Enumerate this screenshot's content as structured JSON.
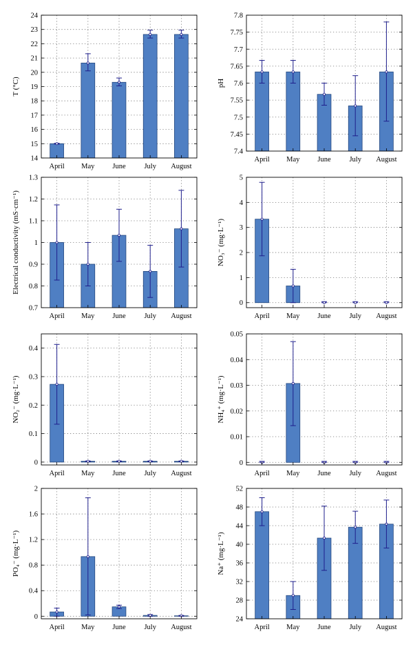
{
  "style": {
    "bar_color": "#4f7fc3",
    "bar_edge": "#24477e",
    "error_color": "#1e1e8c",
    "grid_color": "#6e6e6e"
  },
  "chart_data": [
    {
      "type": "bar",
      "ylabel": "T (°C)",
      "categories": [
        "April",
        "May",
        "June",
        "July",
        "August"
      ],
      "values": [
        15.0,
        20.65,
        19.3,
        22.65,
        22.65
      ],
      "error_low": [
        14.97,
        20.1,
        19.05,
        22.4,
        22.4
      ],
      "error_high": [
        15.03,
        21.3,
        19.6,
        22.95,
        22.95
      ],
      "ylim": [
        14,
        24
      ],
      "yticks": [
        14,
        15,
        16,
        17,
        18,
        19,
        20,
        21,
        22,
        23,
        24
      ],
      "ytick_labels": [
        "14",
        "15",
        "16",
        "17",
        "18",
        "19",
        "20",
        "21",
        "22",
        "23",
        "24"
      ],
      "grid": true
    },
    {
      "type": "bar",
      "ylabel": "pH",
      "categories": [
        "April",
        "May",
        "June",
        "July",
        "August"
      ],
      "values": [
        7.633,
        7.633,
        7.567,
        7.533,
        7.633
      ],
      "error_low": [
        7.6,
        7.6,
        7.535,
        7.445,
        7.488
      ],
      "error_high": [
        7.667,
        7.667,
        7.6,
        7.622,
        7.78
      ],
      "ylim": [
        7.4,
        7.8
      ],
      "yticks": [
        7.4,
        7.45,
        7.5,
        7.55,
        7.6,
        7.65,
        7.7,
        7.75,
        7.8
      ],
      "ytick_labels": [
        "7.4",
        "7.45",
        "7.5",
        "7.55",
        "7.6",
        "7.65",
        "7.7",
        "7.75",
        "7.8"
      ],
      "grid": true
    },
    {
      "type": "bar",
      "ylabel": "Electrical conductivity (mS·cm⁻¹)",
      "categories": [
        "April",
        "May",
        "June",
        "July",
        "August"
      ],
      "values": [
        1.0,
        0.9,
        1.033,
        0.867,
        1.063
      ],
      "error_low": [
        0.827,
        0.8,
        0.913,
        0.747,
        0.887
      ],
      "error_high": [
        1.173,
        1.0,
        1.153,
        0.987,
        1.24
      ],
      "ylim": [
        0.7,
        1.3
      ],
      "yticks": [
        0.7,
        0.8,
        0.9,
        1.0,
        1.1,
        1.2,
        1.3
      ],
      "ytick_labels": [
        "0.7",
        "0.8",
        "0.9",
        "1",
        "1.1",
        "1.2",
        "1.3"
      ],
      "grid": true
    },
    {
      "type": "bar",
      "ylabel": "NO₃⁻ (mg·L⁻¹)",
      "categories": [
        "April",
        "May",
        "June",
        "July",
        "August"
      ],
      "values": [
        3.33,
        0.667,
        0.0,
        0.0,
        0.0
      ],
      "error_low": [
        1.87,
        0.0,
        0.0,
        0.0,
        0.0
      ],
      "error_high": [
        4.8,
        1.33,
        0.04,
        0.04,
        0.04
      ],
      "ylim": [
        -0.2,
        5
      ],
      "yticks": [
        0,
        1,
        2,
        3,
        4,
        5
      ],
      "ytick_labels": [
        "0",
        "1",
        "2",
        "3",
        "4",
        "5"
      ],
      "grid": true
    },
    {
      "type": "bar",
      "ylabel": "NO₂⁻ (mg·L⁻¹)",
      "categories": [
        "April",
        "May",
        "June",
        "July",
        "August"
      ],
      "values": [
        0.273,
        0.003,
        0.003,
        0.003,
        0.003
      ],
      "error_low": [
        0.133,
        0.002,
        0.002,
        0.002,
        0.002
      ],
      "error_high": [
        0.413,
        0.004,
        0.004,
        0.004,
        0.004
      ],
      "ylim": [
        -0.01,
        0.45
      ],
      "yticks": [
        0,
        0.1,
        0.2,
        0.3,
        0.4
      ],
      "ytick_labels": [
        "0",
        "0.1",
        "0.2",
        "0.3",
        "0.4"
      ],
      "grid": true
    },
    {
      "type": "bar",
      "ylabel": "NH₄⁺ (mg·L⁻¹)",
      "categories": [
        "April",
        "May",
        "June",
        "July",
        "August"
      ],
      "values": [
        0.0,
        0.0307,
        0.0,
        0.0,
        0.0
      ],
      "error_low": [
        0.0,
        0.0143,
        0.0,
        0.0,
        0.0
      ],
      "error_high": [
        0.0004,
        0.047,
        0.0004,
        0.0004,
        0.0004
      ],
      "ylim": [
        -0.001,
        0.05
      ],
      "yticks": [
        0,
        0.01,
        0.02,
        0.03,
        0.04,
        0.05
      ],
      "ytick_labels": [
        "0",
        "0.01",
        "0.02",
        "0.03",
        "0.04",
        "0.05"
      ],
      "grid": true
    },
    {
      "type": "bar",
      "ylabel": "PO₄⁻ (mg·L⁻¹)",
      "categories": [
        "April",
        "May",
        "June",
        "July",
        "August"
      ],
      "values": [
        0.067,
        0.933,
        0.147,
        0.013,
        0.007
      ],
      "error_low": [
        0.0,
        0.02,
        0.12,
        0.0,
        0.0
      ],
      "error_high": [
        0.127,
        1.853,
        0.173,
        0.027,
        0.013
      ],
      "ylim": [
        -0.04,
        2
      ],
      "yticks": [
        0,
        0.4,
        0.8,
        1.2,
        1.6,
        2
      ],
      "ytick_labels": [
        "0",
        "0.4",
        "0.8",
        "1.2",
        "1.6",
        "2"
      ],
      "grid": true
    },
    {
      "type": "bar",
      "ylabel": "Na⁺ (mg·L⁻¹)",
      "categories": [
        "April",
        "May",
        "June",
        "July",
        "August"
      ],
      "values": [
        47.0,
        29.0,
        41.33,
        43.67,
        44.33
      ],
      "error_low": [
        44.0,
        26.0,
        34.4,
        40.2,
        39.2
      ],
      "error_high": [
        50.0,
        32.0,
        48.2,
        47.1,
        49.5
      ],
      "ylim": [
        24,
        52
      ],
      "yticks": [
        24,
        28,
        32,
        36,
        40,
        44,
        48,
        52
      ],
      "ytick_labels": [
        "24",
        "28",
        "32",
        "36",
        "40",
        "44",
        "48",
        "52"
      ],
      "grid": true
    }
  ]
}
